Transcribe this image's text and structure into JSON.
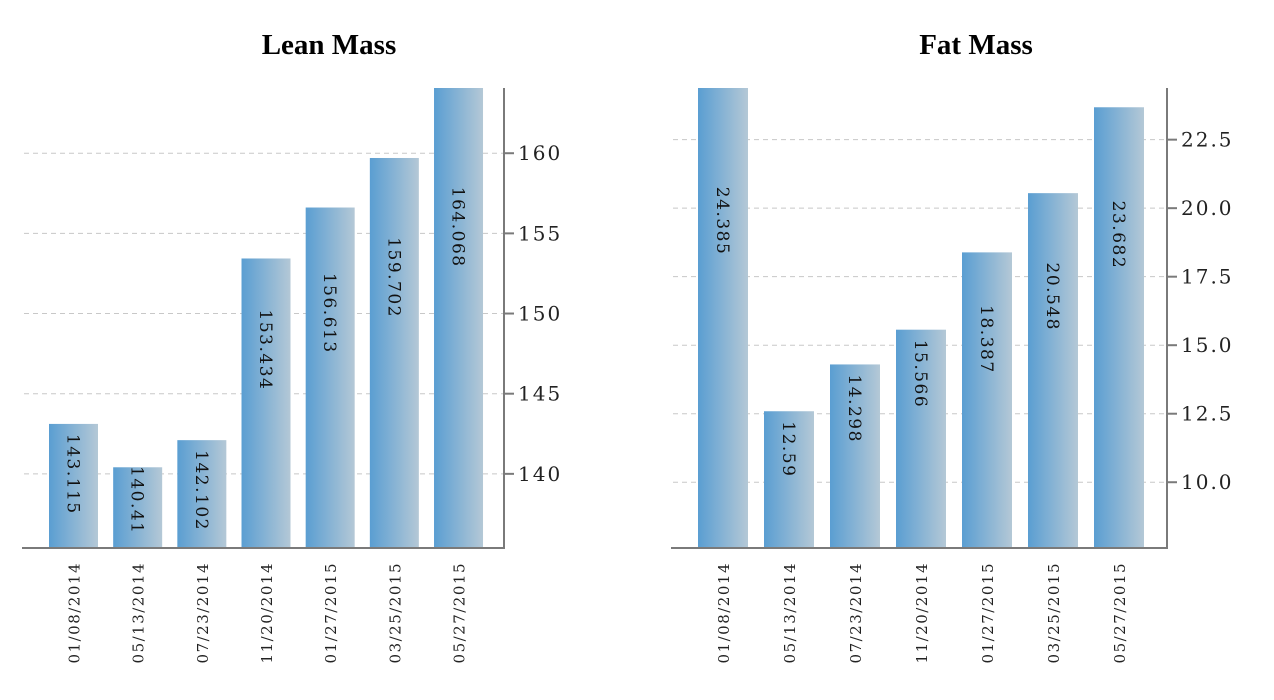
{
  "colors": {
    "bar_left": "#5a9ed2",
    "bar_right": "#b4c8d6",
    "axis": "#7a7a7a",
    "grid": "#c8c8c8"
  },
  "chart_data": [
    {
      "type": "bar",
      "title": "Lean Mass",
      "categories": [
        "01/08/2014",
        "05/13/2014",
        "07/23/2014",
        "11/20/2014",
        "01/27/2015",
        "03/25/2015",
        "05/27/2015"
      ],
      "values": [
        143.115,
        140.41,
        142.102,
        153.434,
        156.613,
        159.702,
        164.068
      ],
      "value_labels": [
        "143.115",
        "140.41",
        "142.102",
        "153.434",
        "156.613",
        "159.702",
        "164.068"
      ],
      "yticks": [
        140,
        145,
        150,
        155,
        160
      ],
      "ytick_labels": [
        "140",
        "145",
        "150",
        "155",
        "160"
      ],
      "ylim": [
        135.375,
        164.068
      ],
      "y_axis_side": "right",
      "grid": true
    },
    {
      "type": "bar",
      "title": "Fat Mass",
      "categories": [
        "01/08/2014",
        "05/13/2014",
        "07/23/2014",
        "11/20/2014",
        "01/27/2015",
        "03/25/2015",
        "05/27/2015"
      ],
      "values": [
        24.385,
        12.59,
        14.298,
        15.566,
        18.387,
        20.548,
        23.682
      ],
      "value_labels": [
        "24.385",
        "12.59",
        "14.298",
        "15.566",
        "18.387",
        "20.548",
        "23.682"
      ],
      "yticks": [
        10.0,
        12.5,
        15.0,
        17.5,
        20.0,
        22.5
      ],
      "ytick_labels": [
        "10.0",
        "12.5",
        "15.0",
        "17.5",
        "20.0",
        "22.5"
      ],
      "ylim": [
        7.6,
        24.385
      ],
      "y_axis_side": "right",
      "grid": true
    }
  ]
}
